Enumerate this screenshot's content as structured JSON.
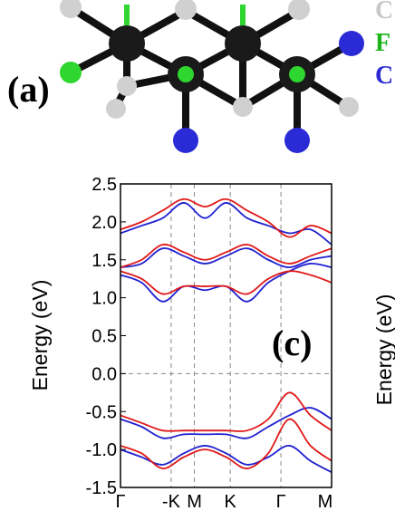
{
  "panel_a_label": "(a)",
  "panel_c_label": "(c)",
  "legend_partial": [
    "C",
    "F",
    "C"
  ],
  "legend_colors": [
    "#c8c8c8",
    "#1db31d",
    "#2b2bd1"
  ],
  "atom_colors": {
    "C": "#1a1a1a",
    "F": "#2fd62f",
    "Cl": "#2a2ad6",
    "H": "#cfcfcf"
  },
  "right_panel_ylabel": "Energy (eV)",
  "chart_data": {
    "type": "line",
    "xlabel": "",
    "ylabel": "Energy (eV)",
    "ylim": [
      -1.5,
      2.5
    ],
    "yticks": [
      "-1.5",
      "-1.0",
      "-0.5",
      "0.0",
      "0.5",
      "1.0",
      "1.5",
      "2.0",
      "2.5"
    ],
    "xticks": [
      "Γ",
      "-K",
      "M",
      "K",
      "Γ",
      "M"
    ],
    "fermi_level": 0.0,
    "series_colors": {
      "blue": "#2020d0",
      "red": "#e01818"
    },
    "series": [
      {
        "color": "blue",
        "x": [
          0,
          0.5,
          1,
          1.5,
          2,
          2.5,
          3,
          3.5,
          4,
          4.5,
          5
        ],
        "values": [
          1.4,
          1.45,
          1.65,
          1.55,
          1.45,
          1.55,
          1.65,
          1.5,
          1.4,
          1.5,
          1.55
        ]
      },
      {
        "color": "blue",
        "x": [
          0,
          0.5,
          1,
          1.5,
          2,
          2.5,
          3,
          3.5,
          4,
          4.5,
          5
        ],
        "values": [
          1.3,
          1.2,
          0.95,
          1.15,
          1.1,
          1.15,
          0.95,
          1.2,
          1.35,
          1.45,
          1.4
        ]
      },
      {
        "color": "blue",
        "x": [
          0,
          0.5,
          1,
          1.5,
          2,
          2.5,
          3,
          3.5,
          4,
          4.5,
          5
        ],
        "values": [
          1.85,
          1.95,
          2.05,
          2.25,
          2.05,
          2.25,
          2.05,
          1.95,
          1.85,
          1.9,
          1.7
        ]
      },
      {
        "color": "red",
        "x": [
          0,
          0.5,
          1,
          1.5,
          2,
          2.5,
          3,
          3.5,
          4,
          4.5,
          5
        ],
        "values": [
          1.4,
          1.5,
          1.7,
          1.6,
          1.5,
          1.6,
          1.7,
          1.55,
          1.45,
          1.55,
          1.65
        ]
      },
      {
        "color": "red",
        "x": [
          0,
          0.5,
          1,
          1.5,
          2,
          2.5,
          3,
          3.5,
          4,
          4.5,
          5
        ],
        "values": [
          1.35,
          1.25,
          1.05,
          1.15,
          1.15,
          1.15,
          1.05,
          1.25,
          1.35,
          1.3,
          1.2
        ]
      },
      {
        "color": "red",
        "x": [
          0,
          0.5,
          1,
          1.5,
          2,
          2.5,
          3,
          3.5,
          4,
          4.5,
          5
        ],
        "values": [
          1.9,
          2.0,
          2.15,
          2.3,
          2.2,
          2.3,
          2.15,
          2.0,
          1.8,
          1.95,
          1.85
        ]
      },
      {
        "color": "blue",
        "x": [
          0,
          0.5,
          1,
          1.5,
          2,
          2.5,
          3,
          3.5,
          4,
          4.5,
          5
        ],
        "values": [
          -0.6,
          -0.7,
          -0.85,
          -0.8,
          -0.8,
          -0.8,
          -0.85,
          -0.7,
          -0.55,
          -0.45,
          -0.6
        ]
      },
      {
        "color": "blue",
        "x": [
          0,
          0.5,
          1,
          1.5,
          2,
          2.5,
          3,
          3.5,
          4,
          4.5,
          5
        ],
        "values": [
          -1.0,
          -1.1,
          -1.2,
          -1.05,
          -0.95,
          -1.05,
          -1.2,
          -1.1,
          -0.95,
          -1.15,
          -1.3
        ]
      },
      {
        "color": "red",
        "x": [
          0,
          0.5,
          1,
          1.5,
          2,
          2.5,
          3,
          3.5,
          4,
          4.5,
          5
        ],
        "values": [
          -0.55,
          -0.65,
          -0.75,
          -0.75,
          -0.75,
          -0.75,
          -0.75,
          -0.6,
          -0.25,
          -0.55,
          -0.75
        ]
      },
      {
        "color": "red",
        "x": [
          0,
          0.5,
          1,
          1.5,
          2,
          2.5,
          3,
          3.5,
          4,
          4.5,
          5
        ],
        "values": [
          -0.95,
          -1.05,
          -1.25,
          -1.1,
          -1.0,
          -1.1,
          -1.25,
          -1.05,
          -0.6,
          -0.95,
          -1.15
        ]
      }
    ]
  }
}
